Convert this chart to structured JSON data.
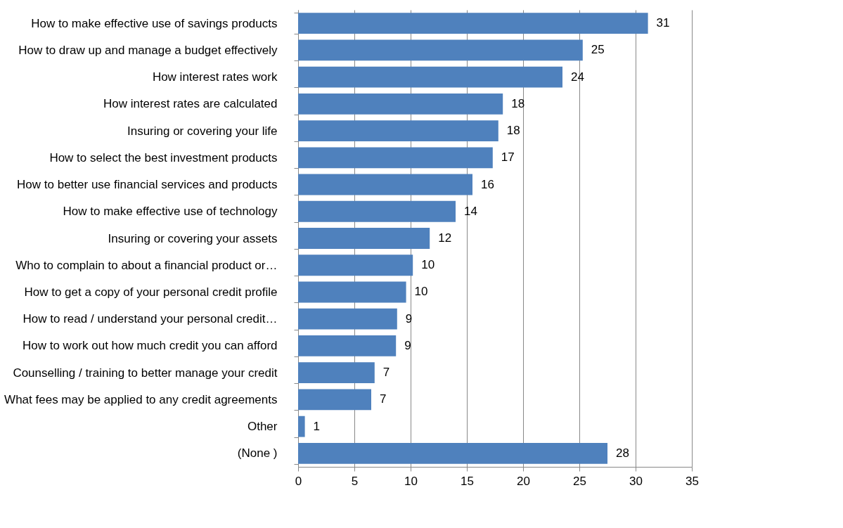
{
  "chart_data": {
    "type": "bar",
    "orientation": "horizontal",
    "categories": [
      "How to make effective use of savings products",
      "How to draw up and manage a budget effectively",
      "How interest rates work",
      "How interest rates are calculated",
      "Insuring or covering your life",
      "How to select the best investment products",
      "How to better use financial services and products",
      "How to make effective use of technology",
      "Insuring or covering your assets",
      "Who to complain to about a financial product or…",
      "How to get a copy of your personal credit profile",
      "How to read / understand your personal credit…",
      "How to work out how much credit you can afford",
      "Counselling / training to better manage your credit",
      "What fees may be applied to any credit agreements",
      "Other",
      "(None )"
    ],
    "values": [
      31.1,
      25.3,
      23.5,
      18.2,
      17.8,
      17.3,
      15.5,
      14.0,
      11.7,
      10.2,
      9.6,
      8.8,
      8.7,
      6.8,
      6.5,
      0.6,
      27.5
    ],
    "value_labels": [
      "31",
      "25",
      "24",
      "18",
      "18",
      "17",
      "16",
      "14",
      "12",
      "10",
      "10",
      "9",
      "9",
      "7",
      "7",
      "1",
      "28"
    ],
    "color": "#4f81bd",
    "xlim": [
      0,
      35
    ],
    "xticks": [
      0,
      5,
      10,
      15,
      20,
      25,
      30,
      35
    ],
    "grid": "x"
  }
}
